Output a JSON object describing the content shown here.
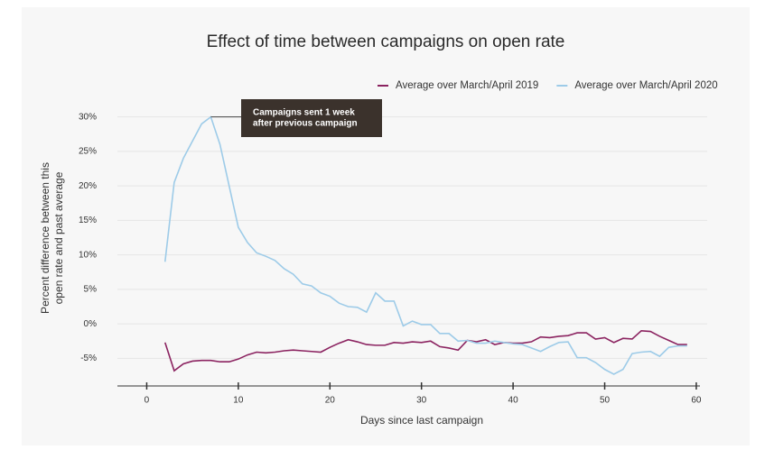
{
  "chart_data": {
    "type": "line",
    "title": "Effect of time between campaigns on open rate",
    "x_label": "Days since last campaign",
    "y_label": [
      "Percent difference between this",
      "open rate and past average"
    ],
    "annotation": [
      "Campaigns sent 1 week",
      "after previous campaign"
    ],
    "x": [
      2,
      3,
      4,
      5,
      6,
      7,
      8,
      9,
      10,
      11,
      12,
      13,
      14,
      15,
      16,
      17,
      18,
      19,
      20,
      21,
      22,
      23,
      24,
      25,
      26,
      27,
      28,
      29,
      30,
      31,
      32,
      33,
      34,
      35,
      36,
      37,
      38,
      39,
      40,
      41,
      42,
      43,
      44,
      45,
      46,
      47,
      48,
      49,
      50,
      51,
      52,
      53,
      54,
      55,
      56,
      57,
      58,
      59
    ],
    "series": [
      {
        "name": "Average over March/April 2019",
        "color": "#8b2360",
        "values": [
          -2.7,
          -6.8,
          -5.8,
          -5.4,
          -5.3,
          -5.3,
          -5.5,
          -5.5,
          -5.1,
          -4.5,
          -4.1,
          -4.2,
          -4.1,
          -3.9,
          -3.8,
          -3.9,
          -4,
          -4.1,
          -3.4,
          -2.8,
          -2.3,
          -2.6,
          -3,
          -3.1,
          -3.1,
          -2.7,
          -2.8,
          -2.6,
          -2.7,
          -2.5,
          -3.3,
          -3.5,
          -3.8,
          -2.4,
          -2.6,
          -2.3,
          -3,
          -2.7,
          -2.8,
          -2.8,
          -2.6,
          -1.9,
          -2,
          -1.8,
          -1.7,
          -1.3,
          -1.3,
          -2.2,
          -2,
          -2.7,
          -2.1,
          -2.2,
          -1,
          -1.1,
          -1.8,
          -2.4,
          -3,
          -3
        ]
      },
      {
        "name": "Average over March/April 2020",
        "color": "#9dcbe8",
        "values": [
          9,
          20.5,
          24,
          26.5,
          29,
          30,
          26,
          20,
          14,
          11.8,
          10.3,
          9.8,
          9.2,
          8,
          7.2,
          5.8,
          5.5,
          4.5,
          4,
          3,
          2.5,
          2.4,
          1.7,
          4.5,
          3.3,
          3.3,
          -0.3,
          0.4,
          -0.1,
          -0.1,
          -1.4,
          -1.4,
          -2.5,
          -2.4,
          -2.8,
          -2.8,
          -2.5,
          -2.7,
          -2.9,
          -3,
          -3.5,
          -4,
          -3.3,
          -2.7,
          -2.6,
          -4.9,
          -4.9,
          -5.6,
          -6.6,
          -7.3,
          -6.6,
          -4.3,
          -4.1,
          -4,
          -4.7,
          -3.4,
          -3.2,
          -3.2
        ]
      }
    ],
    "xlim": [
      -3.2,
      60.4
    ],
    "ylim": [
      -9,
      31
    ],
    "xticks": [
      0,
      10,
      20,
      30,
      40,
      50,
      60
    ],
    "yticks": [
      {
        "value": 30,
        "label": "30%"
      },
      {
        "value": 25,
        "label": "25%"
      },
      {
        "value": 20,
        "label": "20%"
      },
      {
        "value": 15,
        "label": "15%"
      },
      {
        "value": 10,
        "label": "10%"
      },
      {
        "value": 5,
        "label": "5%"
      },
      {
        "value": 0,
        "label": "0%"
      },
      {
        "value": -5,
        "label": "-5%"
      }
    ],
    "grid": true,
    "legend": "top-right"
  }
}
